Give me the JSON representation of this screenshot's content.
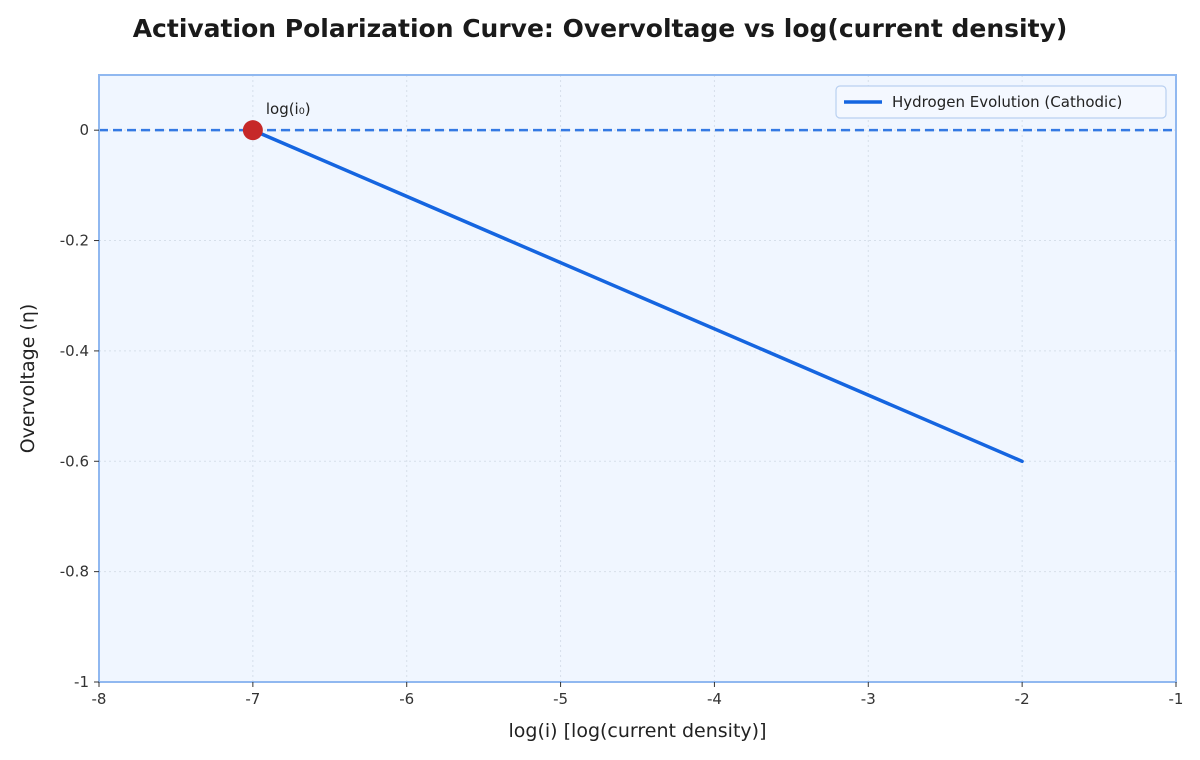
{
  "chart_data": {
    "type": "line",
    "title": "Activation Polarization Curve: Overvoltage vs log(current density)",
    "xlabel": "log(i) [log(current density)]",
    "ylabel": "Overvoltage (η)",
    "xlim": [
      -8,
      -1
    ],
    "ylim": [
      -1,
      0.1
    ],
    "x_ticks": [
      -8,
      -7,
      -6,
      -5,
      -4,
      -3,
      -2,
      -1
    ],
    "x_tick_labels": [
      "-8",
      "-7",
      "-6",
      "-5",
      "-4",
      "-3",
      "-2",
      "-1"
    ],
    "y_ticks": [
      0,
      -0.2,
      -0.4,
      -0.6,
      -0.8,
      -1
    ],
    "y_tick_labels": [
      "0",
      "-0.2",
      "-0.4",
      "-0.6",
      "-0.8",
      "-1"
    ],
    "grid": true,
    "legend_position": "top-right",
    "series": [
      {
        "name": "Hydrogen Evolution (Cathodic)",
        "color": "#1565e0",
        "x": [
          -7,
          -2
        ],
        "y": [
          0,
          -0.6
        ]
      }
    ],
    "reference_lines": [
      {
        "orientation": "horizontal",
        "y": 0,
        "style": "dashed",
        "color": "#1565e0"
      }
    ],
    "annotations": [
      {
        "label": "log(i₀)",
        "x": -7,
        "y": 0,
        "marker_color": "#c62828"
      }
    ],
    "colors": {
      "plot_background": "#f0f6ff",
      "plot_border": "#90b8f0",
      "grid": "#d6dfea"
    }
  }
}
